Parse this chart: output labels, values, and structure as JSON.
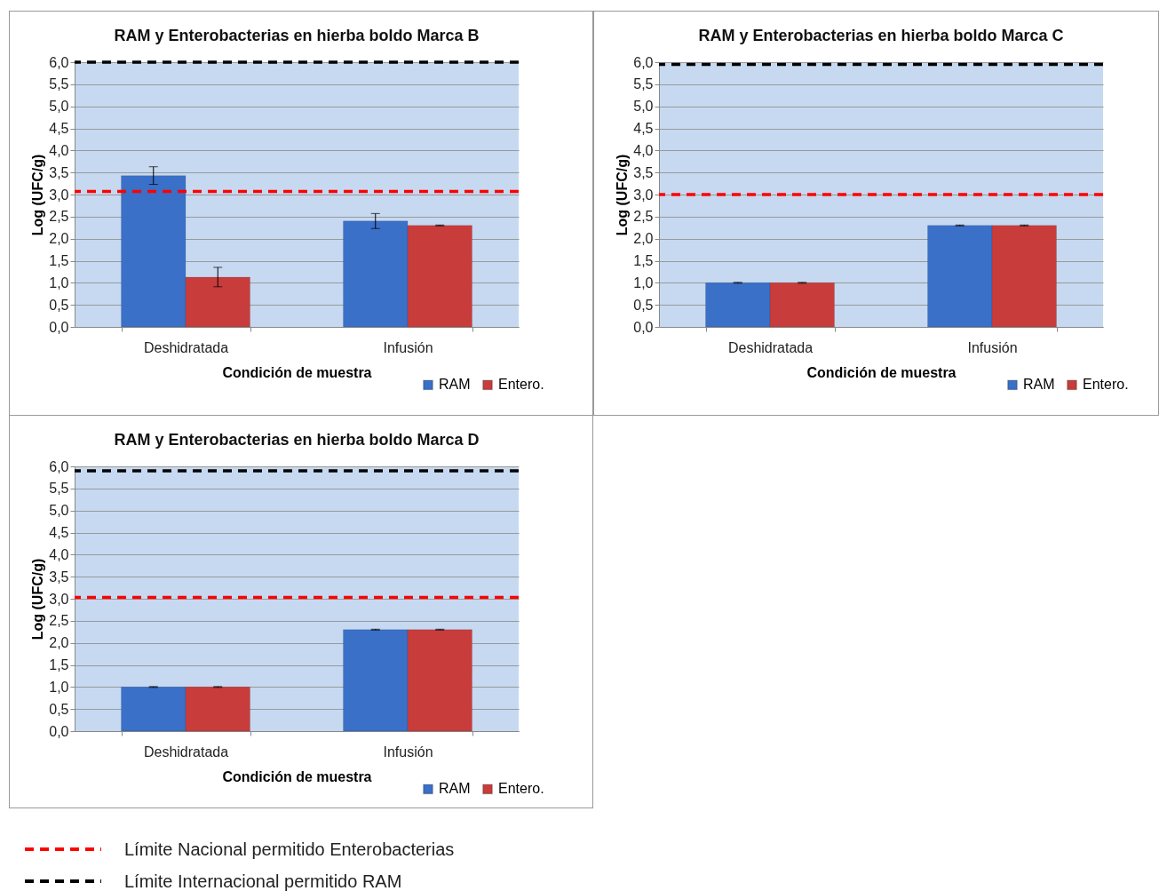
{
  "chart_data": [
    {
      "type": "bar",
      "title": "RAM y Enterobacterias en hierba boldo Marca B",
      "xlabel": "Condición de muestra",
      "ylabel": "Log (UFC/g)",
      "categories": [
        "Deshidratada",
        "Infusión"
      ],
      "series": [
        {
          "name": "RAM",
          "color": "#3a70c8",
          "values": [
            3.43,
            2.4
          ],
          "errors": [
            0.2,
            0.17
          ]
        },
        {
          "name": "Entero.",
          "color": "#c83c3c",
          "values": [
            1.13,
            2.3
          ],
          "errors": [
            0.22,
            0.01
          ]
        }
      ],
      "ylim": [
        0,
        6
      ],
      "yticks": [
        {
          "value": 0,
          "label": "0,0"
        },
        {
          "value": 0.5,
          "label": "0,5"
        },
        {
          "value": 1,
          "label": "1,0"
        },
        {
          "value": 1.5,
          "label": "1,5"
        },
        {
          "value": 2,
          "label": "2,0"
        },
        {
          "value": 2.5,
          "label": "2,5"
        },
        {
          "value": 3,
          "label": "3,0"
        },
        {
          "value": 3.5,
          "label": "3,5"
        },
        {
          "value": 4,
          "label": "4,0"
        },
        {
          "value": 4.5,
          "label": "4,5"
        },
        {
          "value": 5,
          "label": "5,0"
        },
        {
          "value": 5.5,
          "label": "5,5"
        },
        {
          "value": 6,
          "label": "6,0"
        }
      ],
      "ref_lines": [
        {
          "axis": "y",
          "value": 3.07,
          "color": "#ff0000",
          "line_style": "dashed"
        },
        {
          "axis": "y",
          "value": 6,
          "color": "#000000",
          "line_style": "dashed"
        }
      ],
      "grid": "y",
      "legend": "bottom right"
    },
    {
      "type": "bar",
      "title": "RAM y Enterobacterias en hierba boldo Marca C",
      "xlabel": "Condición de muestra",
      "ylabel": "Log (UFC/g)",
      "categories": [
        "Deshidratada",
        "Infusión"
      ],
      "series": [
        {
          "name": "RAM",
          "color": "#3a70c8",
          "values": [
            1.0,
            2.3
          ],
          "errors": [
            0.01,
            0.01
          ]
        },
        {
          "name": "Entero.",
          "color": "#c83c3c",
          "values": [
            1.0,
            2.3
          ],
          "errors": [
            0.01,
            0.01
          ]
        }
      ],
      "ylim": [
        0,
        6
      ],
      "yticks": [
        {
          "value": 0,
          "label": "0,0"
        },
        {
          "value": 0.5,
          "label": "0,5"
        },
        {
          "value": 1,
          "label": "1,0"
        },
        {
          "value": 1.5,
          "label": "1,5"
        },
        {
          "value": 2,
          "label": "2,0"
        },
        {
          "value": 2.5,
          "label": "2,5"
        },
        {
          "value": 3,
          "label": "3,0"
        },
        {
          "value": 3.5,
          "label": "3,5"
        },
        {
          "value": 4,
          "label": "4,0"
        },
        {
          "value": 4.5,
          "label": "4,5"
        },
        {
          "value": 5,
          "label": "5,0"
        },
        {
          "value": 5.5,
          "label": "5,5"
        },
        {
          "value": 6,
          "label": "6,0"
        }
      ],
      "ref_lines": [
        {
          "axis": "y",
          "value": 3.0,
          "color": "#ff0000",
          "line_style": "dashed"
        },
        {
          "axis": "y",
          "value": 5.95,
          "color": "#000000",
          "line_style": "dashed"
        }
      ],
      "grid": "y",
      "legend": "bottom right"
    },
    {
      "type": "bar",
      "title": "RAM y Enterobacterias en hierba boldo Marca D",
      "xlabel": "Condición de muestra",
      "ylabel": "Log (UFC/g)",
      "categories": [
        "Deshidratada",
        "Infusión"
      ],
      "series": [
        {
          "name": "RAM",
          "color": "#3a70c8",
          "values": [
            1.0,
            2.3
          ],
          "errors": [
            0.01,
            0.01
          ]
        },
        {
          "name": "Entero.",
          "color": "#c83c3c",
          "values": [
            1.0,
            2.3
          ],
          "errors": [
            0.01,
            0.01
          ]
        }
      ],
      "ylim": [
        0,
        6
      ],
      "yticks": [
        {
          "value": 0,
          "label": "0,0"
        },
        {
          "value": 0.5,
          "label": "0,5"
        },
        {
          "value": 1,
          "label": "1,0"
        },
        {
          "value": 1.5,
          "label": "1,5"
        },
        {
          "value": 2,
          "label": "2,0"
        },
        {
          "value": 2.5,
          "label": "2,5"
        },
        {
          "value": 3,
          "label": "3,0"
        },
        {
          "value": 3.5,
          "label": "3,5"
        },
        {
          "value": 4,
          "label": "4,0"
        },
        {
          "value": 4.5,
          "label": "4,5"
        },
        {
          "value": 5,
          "label": "5,0"
        },
        {
          "value": 5.5,
          "label": "5,5"
        },
        {
          "value": 6,
          "label": "6,0"
        }
      ],
      "ref_lines": [
        {
          "axis": "y",
          "value": 3.03,
          "color": "#ff0000",
          "line_style": "dashed",
          "label": "Límite Nacional permitido Enterobacterias"
        },
        {
          "axis": "y",
          "value": 5.9,
          "color": "#000000",
          "line_style": "dashed",
          "label": "Límite Internacional permitido RAM"
        }
      ],
      "grid": "y",
      "legend": "bottom right"
    }
  ]
}
